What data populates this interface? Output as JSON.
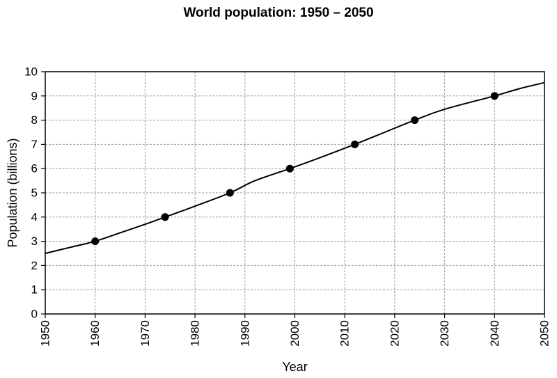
{
  "chart_data": {
    "type": "line",
    "title": "World population: 1950 – 2050",
    "xlabel": "Year",
    "ylabel": "Population (billions)",
    "xlim": [
      1950,
      2050
    ],
    "ylim": [
      0,
      10
    ],
    "x_ticks": [
      "1950",
      "1960",
      "1970",
      "1980",
      "1990",
      "2000",
      "2010",
      "2020",
      "2030",
      "2040",
      "2050"
    ],
    "y_ticks": [
      "0",
      "1",
      "2",
      "3",
      "4",
      "5",
      "6",
      "7",
      "8",
      "9",
      "10"
    ],
    "grid": true,
    "series": [
      {
        "name": "World population",
        "x": [
          1950,
          1955,
          1960,
          1965,
          1970,
          1974,
          1980,
          1987,
          1992,
          1999,
          2005,
          2012,
          2018,
          2024,
          2030,
          2040,
          2045,
          2050
        ],
        "y": [
          2.5,
          2.75,
          3.0,
          3.35,
          3.7,
          4.0,
          4.45,
          5.0,
          5.5,
          6.0,
          6.45,
          7.0,
          7.5,
          8.0,
          8.45,
          9.0,
          9.3,
          9.55
        ]
      }
    ],
    "markers": {
      "x": [
        1960,
        1974,
        1987,
        1999,
        2012,
        2024,
        2040
      ],
      "y": [
        3,
        4,
        5,
        6,
        7,
        8,
        9
      ]
    }
  },
  "colors": {
    "line": "#000000",
    "grid": "#9a9a9a",
    "axis": "#000000"
  }
}
